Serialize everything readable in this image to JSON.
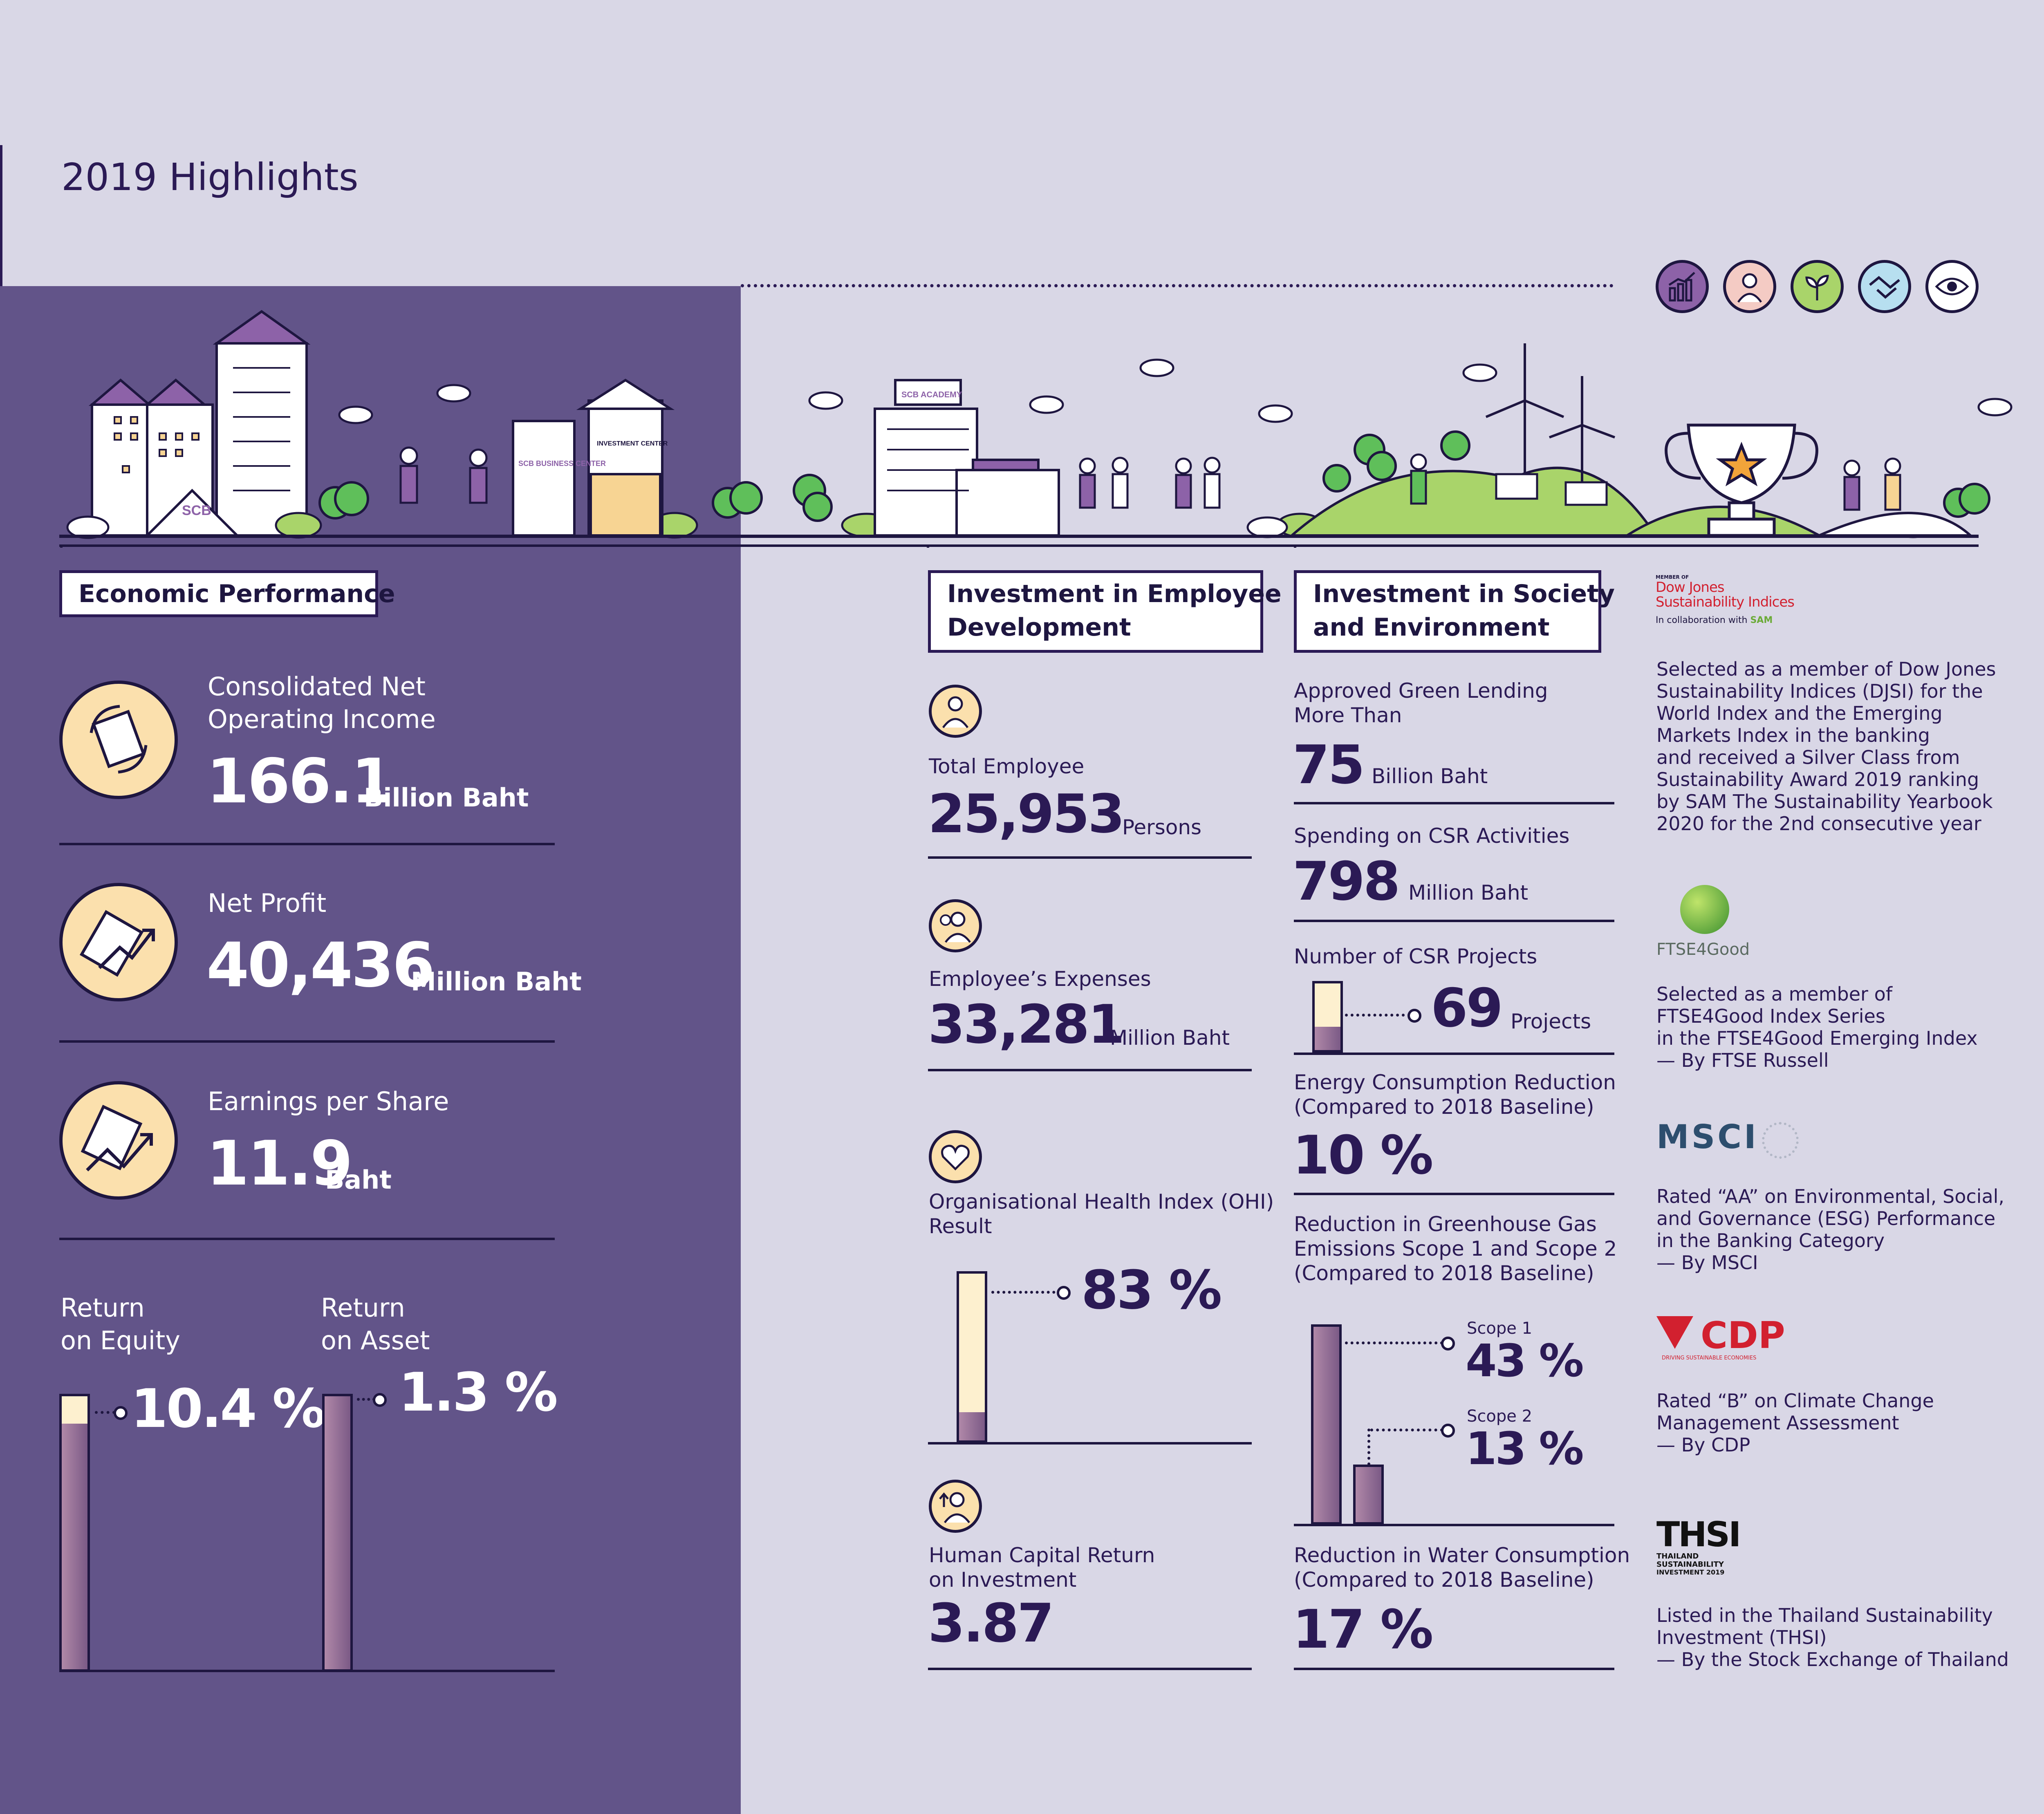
{
  "page": {
    "title": "2019 Highlights"
  },
  "pillar_icons": [
    {
      "icon": "growth-chart-icon",
      "color": "#8d62a8"
    },
    {
      "icon": "doctor-icon",
      "color": "#f4cbc4"
    },
    {
      "icon": "plant-icon",
      "color": "#a9d46a"
    },
    {
      "icon": "handshake-icon",
      "color": "#b7dff0"
    },
    {
      "icon": "eye-icon",
      "color": "#ffffff"
    }
  ],
  "scene": {
    "scb_logo": "SCB",
    "business_center": "SCB BUSINESS CENTER",
    "investment_center": "INVESTMENT CENTER",
    "academy": "SCB ACADEMY"
  },
  "economic": {
    "heading": "Economic Performance",
    "income": {
      "label": "Consolidated Net\nOperating Income",
      "value": "166.1",
      "unit": "Billion Baht"
    },
    "profit": {
      "label": "Net Profit",
      "value": "40,436",
      "unit": "Million Baht"
    },
    "eps": {
      "label": "Earnings per Share",
      "value": "11.9",
      "unit": "Baht"
    },
    "roe": {
      "label": "Return\non Equity",
      "value": "10.4 %",
      "fill": 0.9
    },
    "roa": {
      "label": "Return\non Asset",
      "value": "1.3 %",
      "fill": 1.0
    }
  },
  "employee": {
    "heading": "Investment in Employee\nDevelopment",
    "total": {
      "label": "Total Employee",
      "value": "25,953",
      "unit": "Persons"
    },
    "expenses": {
      "label": "Employee’s Expenses",
      "value": "33,281",
      "unit": "Million Baht"
    },
    "ohi": {
      "label": "Organisational Health Index (OHI)\nResult",
      "value": "83 %",
      "fill": 0.17
    },
    "hcroi": {
      "label": "Human Capital Return\non Investment",
      "value": "3.87"
    }
  },
  "society": {
    "heading": "Investment in Society\nand Environment",
    "green": {
      "label": "Approved Green Lending\nMore Than",
      "value": "75",
      "unit": "Billion Baht"
    },
    "csr_spend": {
      "label": "Spending on CSR Activities",
      "value": "798",
      "unit": "Million Baht"
    },
    "csr_projects": {
      "label": "Number of CSR Projects",
      "value": "69",
      "unit": "Projects",
      "fill": 0.35
    },
    "energy": {
      "label": "Energy Consumption Reduction\n(Compared to 2018 Baseline)",
      "value": "10 %"
    },
    "ghg": {
      "label": "Reduction in Greenhouse Gas\nEmissions Scope 1 and Scope 2\n(Compared to 2018 Baseline)",
      "scope1_label": "Scope 1",
      "scope1_value": "43 %",
      "scope1_fill": 1.0,
      "scope2_label": "Scope 2",
      "scope2_value": "13 %",
      "scope2_fill": 0.3
    },
    "water": {
      "label": "Reduction in Water Consumption\n(Compared to 2018 Baseline)",
      "value": "17 %"
    }
  },
  "recognition": {
    "djsi": {
      "logo_small": "MEMBER OF",
      "logo_line1": "Dow Jones",
      "logo_line2": "Sustainability Indices",
      "logo_collab": "In collaboration with",
      "logo_sam": "SAM",
      "text": "Selected as a member of Dow Jones\nSustainability Indices (DJSI) for the\nWorld Index and the Emerging\nMarkets Index in the banking\nand received a Silver Class from\nSustainability Award 2019 ranking\nby SAM The Sustainability Yearbook\n2020 for the 2nd consecutive year"
    },
    "ftse": {
      "logo": "FTSE4Good",
      "text": "Selected as a member of\nFTSE4Good Index Series\nin the FTSE4Good Emerging Index\n— By FTSE Russell"
    },
    "msci": {
      "logo": "MSCI",
      "text": "Rated “AA” on Environmental, Social,\nand Governance (ESG) Performance\nin the Banking Category\n— By MSCI"
    },
    "cdp": {
      "logo": "CDP",
      "logo_sub": "DRIVING SUSTAINABLE ECONOMIES",
      "text": "Rated “B” on Climate Change\nManagement Assessment\n— By CDP"
    },
    "thsi": {
      "logo": "THSI",
      "logo_sub1": "THAILAND",
      "logo_sub2": "SUSTAINABILITY",
      "logo_sub3": "INVESTMENT 2019",
      "text": "Listed in the Thailand Sustainability\nInvestment (THSI)\n— By the Stock Exchange of Thailand"
    }
  }
}
